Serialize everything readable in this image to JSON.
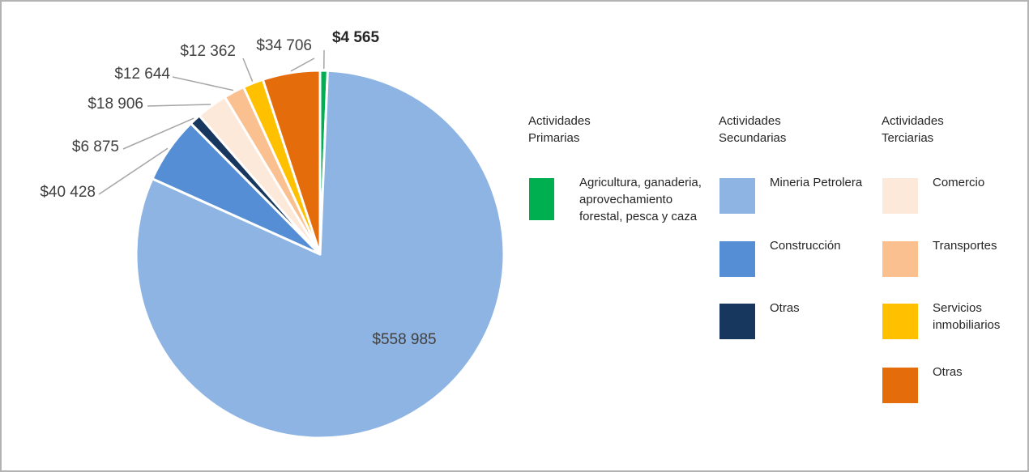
{
  "chart_data": {
    "type": "pie",
    "groups": [
      {
        "title": "Actividades Primarias",
        "categories": [
          "Agricultura, ganaderia, aprovechamiento forestal, pesca y caza"
        ],
        "values": [
          4565
        ],
        "value_labels": [
          "$4 565"
        ],
        "colors": [
          "#00b050"
        ]
      },
      {
        "title": "Actividades Secundarias",
        "categories": [
          "Mineria Petrolera",
          "Construcción",
          "Otras"
        ],
        "values": [
          558985,
          40428,
          6875
        ],
        "value_labels": [
          "$558 985",
          "$40 428",
          "$6 875"
        ],
        "colors": [
          "#8eb4e3",
          "#558ed5",
          "#17375e"
        ]
      },
      {
        "title": "Actividades Terciarias",
        "categories": [
          "Comercio",
          "Transportes",
          "Servicios inmobiliarios",
          "Otras"
        ],
        "values": [
          18906,
          12644,
          12362,
          34706
        ],
        "value_labels": [
          "$18 906",
          "$12 644",
          "$12 362",
          "$34 706"
        ],
        "colors": [
          "#fde9d9",
          "#fac090",
          "#ffc000",
          "#e46c0a"
        ]
      }
    ]
  }
}
